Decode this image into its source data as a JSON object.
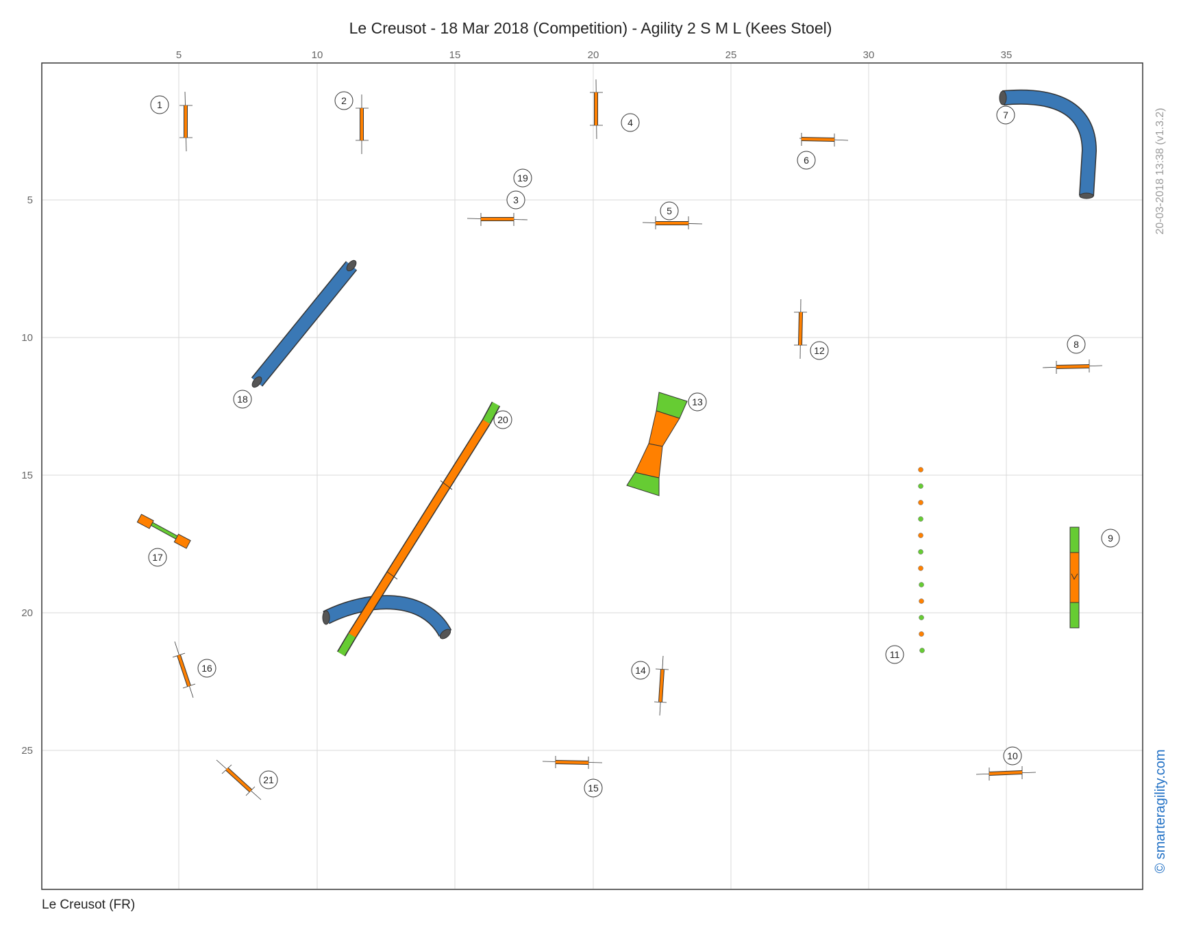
{
  "title": "Le Creusot - 18 Mar 2018 (Competition) - Agility 2 S M L (Kees Stoel)",
  "venue_label": "Le Creusot (FR)",
  "timestamp_label": "20-03-2018 13:38   (v1.3.2)",
  "brand_label": "© smarteragility.com",
  "x_ticks": [
    "5",
    "10",
    "15",
    "20",
    "25",
    "30",
    "35"
  ],
  "y_ticks": [
    "5",
    "10",
    "15",
    "20",
    "25"
  ],
  "colors": {
    "bar": "#ff8000",
    "contact": "#66cc33",
    "tunnel": "#3a78b5",
    "grid": "#d9d9d9",
    "brand": "#1f6fc4"
  },
  "numbers": {
    "n1": "1",
    "n2": "2",
    "n3": "3",
    "n4": "4",
    "n5": "5",
    "n6": "6",
    "n7": "7",
    "n8": "8",
    "n9": "9",
    "n10": "10",
    "n11": "11",
    "n12": "12",
    "n13": "13",
    "n14": "14",
    "n15": "15",
    "n16": "16",
    "n17": "17",
    "n18": "18",
    "n19": "19",
    "n20": "20",
    "n21": "21"
  }
}
